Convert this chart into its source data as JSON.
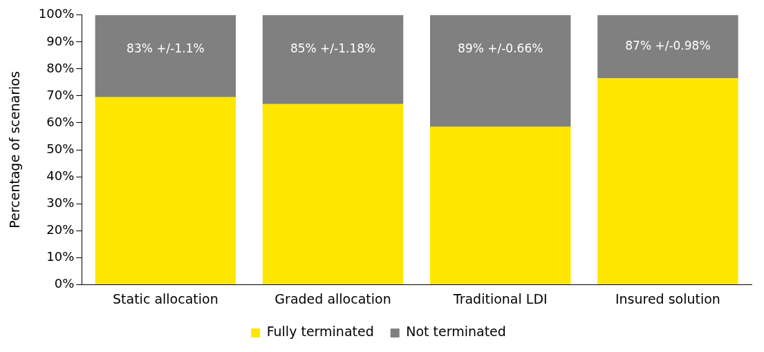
{
  "chart_data": {
    "type": "bar",
    "stacked": true,
    "ylabel": "Percentage of scenarios",
    "categories": [
      "Static allocation",
      "Graded allocation",
      "Traditional LDI",
      "Insured solution"
    ],
    "series": [
      {
        "name": "Fully terminated",
        "color": "#ffe600",
        "values": [
          69.5,
          67,
          58.5,
          76.5
        ]
      },
      {
        "name": "Not terminated",
        "color": "#808080",
        "values": [
          30.5,
          33,
          41.5,
          23.5
        ]
      }
    ],
    "ylim": [
      0,
      100
    ],
    "yticks": [
      {
        "value": 0,
        "label": "0%"
      },
      {
        "value": 10,
        "label": "10%"
      },
      {
        "value": 20,
        "label": "20%"
      },
      {
        "value": 30,
        "label": "30%"
      },
      {
        "value": 40,
        "label": "40%"
      },
      {
        "value": 50,
        "label": "50%"
      },
      {
        "value": 60,
        "label": "60%"
      },
      {
        "value": 70,
        "label": "70%"
      },
      {
        "value": 80,
        "label": "80%"
      },
      {
        "value": 90,
        "label": "90%"
      },
      {
        "value": 100,
        "label": "100%"
      }
    ],
    "annotations": [
      "83% +/-1.1%",
      "85% +/-1.18%",
      "89% +/-0.66%",
      "87% +/-0.98%"
    ],
    "grid": false,
    "legend": "bottom"
  }
}
